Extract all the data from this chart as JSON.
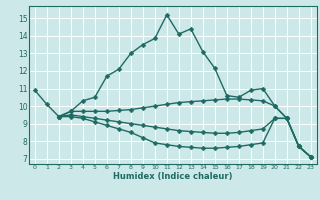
{
  "xlabel": "Humidex (Indice chaleur)",
  "background_color": "#cde8e8",
  "grid_color": "#ffffff",
  "line_color": "#1e6b63",
  "xlim": [
    -0.5,
    23.5
  ],
  "ylim": [
    6.7,
    15.7
  ],
  "yticks": [
    7,
    8,
    9,
    10,
    11,
    12,
    13,
    14,
    15
  ],
  "xticks": [
    0,
    1,
    2,
    3,
    4,
    5,
    6,
    7,
    8,
    9,
    10,
    11,
    12,
    13,
    14,
    15,
    16,
    17,
    18,
    19,
    20,
    21,
    22,
    23
  ],
  "series": [
    {
      "x": [
        0,
        1,
        2,
        3,
        4,
        5,
        6,
        7,
        8,
        9,
        10,
        11,
        12,
        13,
        14,
        15,
        16,
        17,
        18,
        19,
        20,
        21,
        22,
        23
      ],
      "y": [
        10.9,
        10.1,
        9.4,
        9.7,
        10.3,
        10.5,
        11.7,
        12.1,
        13.0,
        13.5,
        13.85,
        15.2,
        14.1,
        14.4,
        13.1,
        12.15,
        10.6,
        10.5,
        10.9,
        11.0,
        10.0,
        9.3,
        7.7,
        7.1
      ]
    },
    {
      "x": [
        2,
        3,
        4,
        5,
        6,
        7,
        8,
        9,
        10,
        11,
        12,
        13,
        14,
        15,
        16,
        17,
        18,
        19,
        20,
        21,
        22,
        23
      ],
      "y": [
        9.4,
        9.7,
        9.7,
        9.7,
        9.7,
        9.75,
        9.8,
        9.9,
        10.0,
        10.1,
        10.2,
        10.25,
        10.3,
        10.35,
        10.4,
        10.4,
        10.35,
        10.3,
        10.0,
        9.3,
        7.7,
        7.1
      ]
    },
    {
      "x": [
        2,
        3,
        4,
        5,
        6,
        7,
        8,
        9,
        10,
        11,
        12,
        13,
        14,
        15,
        16,
        17,
        18,
        19,
        20,
        21,
        22,
        23
      ],
      "y": [
        9.4,
        9.5,
        9.4,
        9.3,
        9.2,
        9.1,
        9.0,
        8.9,
        8.8,
        8.7,
        8.6,
        8.55,
        8.5,
        8.45,
        8.45,
        8.5,
        8.6,
        8.7,
        9.3,
        9.3,
        7.7,
        7.1
      ]
    },
    {
      "x": [
        2,
        3,
        4,
        5,
        6,
        7,
        8,
        9,
        10,
        11,
        12,
        13,
        14,
        15,
        16,
        17,
        18,
        19,
        20,
        21,
        22,
        23
      ],
      "y": [
        9.4,
        9.4,
        9.3,
        9.1,
        8.9,
        8.7,
        8.5,
        8.2,
        7.9,
        7.8,
        7.7,
        7.65,
        7.6,
        7.6,
        7.65,
        7.7,
        7.8,
        7.9,
        9.3,
        9.3,
        7.7,
        7.1
      ]
    }
  ]
}
